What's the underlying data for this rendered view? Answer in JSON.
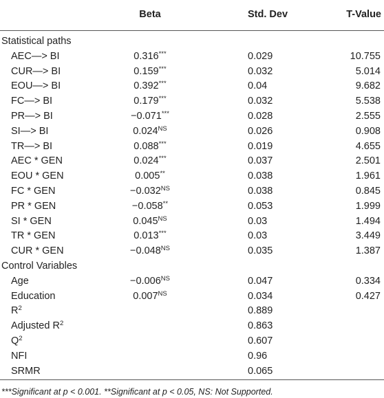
{
  "header": {
    "columns": [
      "Beta",
      "Std. Dev",
      "T-Value"
    ]
  },
  "sections": [
    {
      "title": "Statistical paths",
      "rows": [
        {
          "label": "AEC—> BI",
          "beta": "0.316",
          "sig": "***",
          "sd": "0.029",
          "t": "10.755"
        },
        {
          "label": "CUR—> BI",
          "beta": "0.159",
          "sig": "***",
          "sd": "0.032",
          "t": "5.014"
        },
        {
          "label": "EOU—> BI",
          "beta": "0.392",
          "sig": "***",
          "sd": "0.04",
          "t": "9.682"
        },
        {
          "label": "FC—> BI",
          "beta": "0.179",
          "sig": "***",
          "sd": "0.032",
          "t": "5.538"
        },
        {
          "label": "PR—> BI",
          "beta": "−0.071",
          "sig": "***",
          "sd": "0.028",
          "t": "2.555"
        },
        {
          "label": "SI—> BI",
          "beta": "0.024",
          "sig": "NS",
          "sd": "0.026",
          "t": "0.908"
        },
        {
          "label": "TR—> BI",
          "beta": "0.088",
          "sig": "***",
          "sd": "0.019",
          "t": "4.655"
        },
        {
          "label": "AEC * GEN",
          "beta": "0.024",
          "sig": "***",
          "sd": "0.037",
          "t": "2.501"
        },
        {
          "label": "EOU * GEN",
          "beta": "0.005",
          "sig": "**",
          "sd": "0.038",
          "t": "1.961"
        },
        {
          "label": "FC * GEN",
          "beta": "−0.032",
          "sig": "NS",
          "sd": "0.038",
          "t": "0.845"
        },
        {
          "label": "PR * GEN",
          "beta": "−0.058",
          "sig": "**",
          "sd": "0.053",
          "t": "1.999"
        },
        {
          "label": "SI * GEN",
          "beta": "0.045",
          "sig": "NS",
          "sd": "0.03",
          "t": "1.494"
        },
        {
          "label": "TR * GEN",
          "beta": "0.013",
          "sig": "***",
          "sd": "0.03",
          "t": "3.449"
        },
        {
          "label": "CUR * GEN",
          "beta": "−0.048",
          "sig": "NS",
          "sd": "0.035",
          "t": "1.387"
        }
      ]
    },
    {
      "title": "Control Variables",
      "rows": [
        {
          "label": "Age",
          "beta": "−0.006",
          "sig": "NS",
          "sd": "0.047",
          "t": "0.334"
        },
        {
          "label": "Education",
          "beta": "0.007",
          "sig": "NS",
          "sd": "0.034",
          "t": "0.427"
        },
        {
          "label": "R",
          "label_sup": "2",
          "sd": "0.889"
        },
        {
          "label": "Adjusted R",
          "label_sup": "2",
          "sd": "0.863"
        },
        {
          "label": "Q",
          "label_sup": "2",
          "sd": "0.607"
        },
        {
          "label": "NFI",
          "sd": "0.96"
        },
        {
          "label": "SRMR",
          "sd": "0.065"
        }
      ]
    }
  ],
  "footnote": "***Significant at p < 0.001. **Significant at p < 0.05, NS: Not Supported."
}
